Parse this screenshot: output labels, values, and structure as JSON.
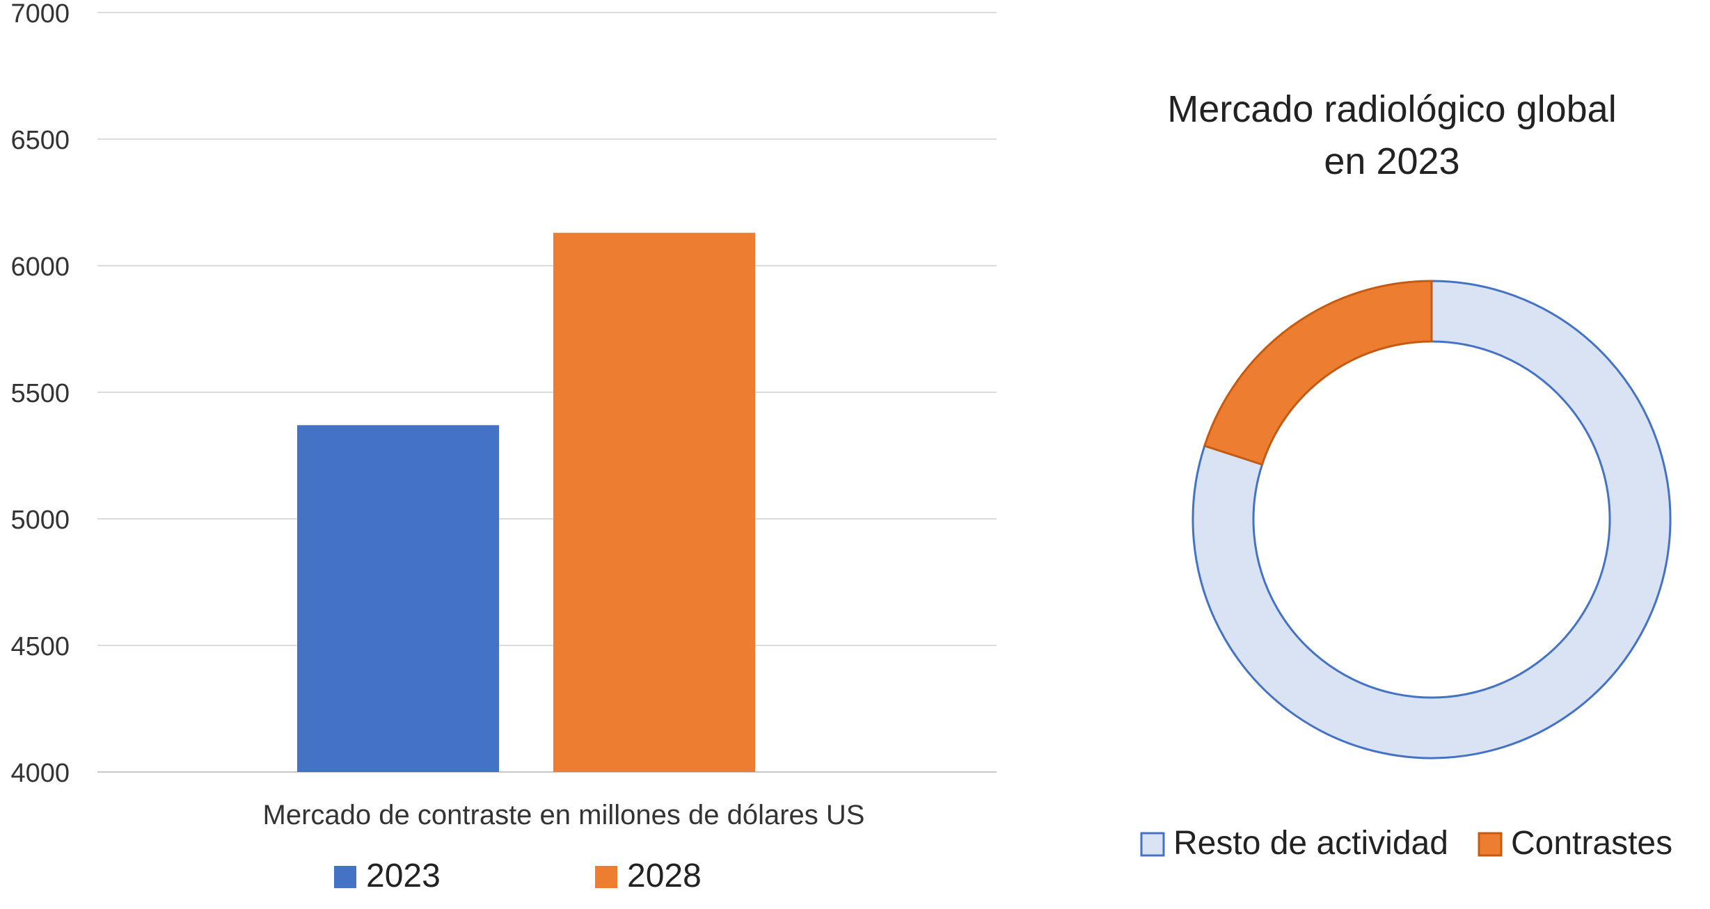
{
  "chart_data": [
    {
      "type": "bar",
      "title": "",
      "xlabel": "Mercado de contraste en millones de dólares US",
      "ylabel": "",
      "ylim": [
        4000,
        7000
      ],
      "yticks": [
        "4000",
        "4500",
        "5000",
        "5500",
        "6000",
        "6500",
        "7000"
      ],
      "categories": [
        "Mercado de contraste en millones de dólares US"
      ],
      "series": [
        {
          "name": "2023",
          "values": [
            5370
          ],
          "color": "#4472c4"
        },
        {
          "name": "2028",
          "values": [
            6130
          ],
          "color": "#ed7d31"
        }
      ],
      "grid": true,
      "legend": "bottom"
    },
    {
      "type": "pie",
      "title": "Mercado radiológico global en 2023",
      "title_lines": [
        "Mercado radiológico global",
        "en 2023"
      ],
      "donut": true,
      "slices": [
        {
          "name": "Resto de actividad",
          "value": 80,
          "color": "#dae3f3",
          "stroke": "#4472c4"
        },
        {
          "name": "Contrastes",
          "value": 20,
          "color": "#ed7d31",
          "stroke": "#c55a11"
        }
      ],
      "legend": "bottom"
    }
  ]
}
